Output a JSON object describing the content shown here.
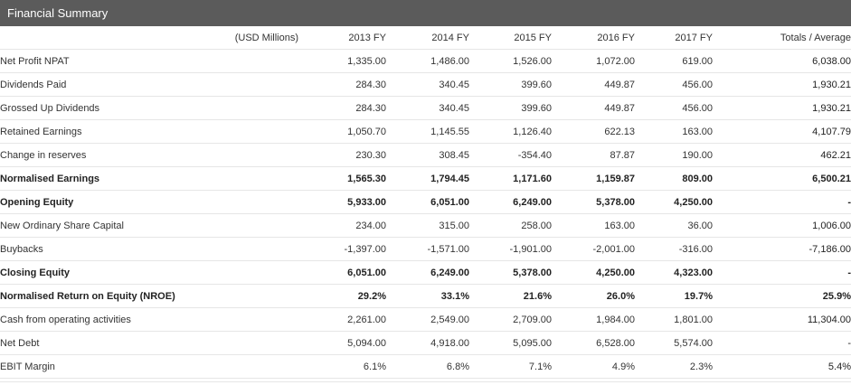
{
  "title": "Financial Summary",
  "columns": [
    "(USD Millions)",
    "2013 FY",
    "2014 FY",
    "2015 FY",
    "2016 FY",
    "2017 FY",
    "Totals / Average"
  ],
  "rows": [
    {
      "label": "Net Profit NPAT",
      "bold": false,
      "values": [
        "1,335.00",
        "1,486.00",
        "1,526.00",
        "1,072.00",
        "619.00"
      ],
      "total": "6,038.00"
    },
    {
      "label": "Dividends Paid",
      "bold": false,
      "values": [
        "284.30",
        "340.45",
        "399.60",
        "449.87",
        "456.00"
      ],
      "total": "1,930.21"
    },
    {
      "label": "Grossed Up Dividends",
      "bold": false,
      "values": [
        "284.30",
        "340.45",
        "399.60",
        "449.87",
        "456.00"
      ],
      "total": "1,930.21"
    },
    {
      "label": "Retained Earnings",
      "bold": false,
      "values": [
        "1,050.70",
        "1,145.55",
        "1,126.40",
        "622.13",
        "163.00"
      ],
      "total": "4,107.79"
    },
    {
      "label": "Change in reserves",
      "bold": false,
      "values": [
        "230.30",
        "308.45",
        "-354.40",
        "87.87",
        "190.00"
      ],
      "total": "462.21"
    },
    {
      "label": "Normalised Earnings",
      "bold": true,
      "values": [
        "1,565.30",
        "1,794.45",
        "1,171.60",
        "1,159.87",
        "809.00"
      ],
      "total": "6,500.21"
    },
    {
      "label": "Opening Equity",
      "bold": true,
      "values": [
        "5,933.00",
        "6,051.00",
        "6,249.00",
        "5,378.00",
        "4,250.00"
      ],
      "total": "-"
    },
    {
      "label": "New Ordinary Share Capital",
      "bold": false,
      "values": [
        "234.00",
        "315.00",
        "258.00",
        "163.00",
        "36.00"
      ],
      "total": "1,006.00"
    },
    {
      "label": "Buybacks",
      "bold": false,
      "values": [
        "-1,397.00",
        "-1,571.00",
        "-1,901.00",
        "-2,001.00",
        "-316.00"
      ],
      "total": "-7,186.00"
    },
    {
      "label": "Closing Equity",
      "bold": true,
      "values": [
        "6,051.00",
        "6,249.00",
        "5,378.00",
        "4,250.00",
        "4,323.00"
      ],
      "total": "-"
    },
    {
      "label": "Normalised Return on Equity (NROE)",
      "bold": true,
      "values": [
        "29.2%",
        "33.1%",
        "21.6%",
        "26.0%",
        "19.7%"
      ],
      "total": "25.9%"
    },
    {
      "label": "Cash from operating activities",
      "bold": false,
      "values": [
        "2,261.00",
        "2,549.00",
        "2,709.00",
        "1,984.00",
        "1,801.00"
      ],
      "total": "11,304.00"
    },
    {
      "label": "Net Debt",
      "bold": false,
      "values": [
        "5,094.00",
        "4,918.00",
        "5,095.00",
        "6,528.00",
        "5,574.00"
      ],
      "total": "-"
    },
    {
      "label": "EBIT Margin",
      "bold": false,
      "values": [
        "6.1%",
        "6.8%",
        "7.1%",
        "4.9%",
        "2.3%"
      ],
      "total": "5.4%"
    }
  ]
}
